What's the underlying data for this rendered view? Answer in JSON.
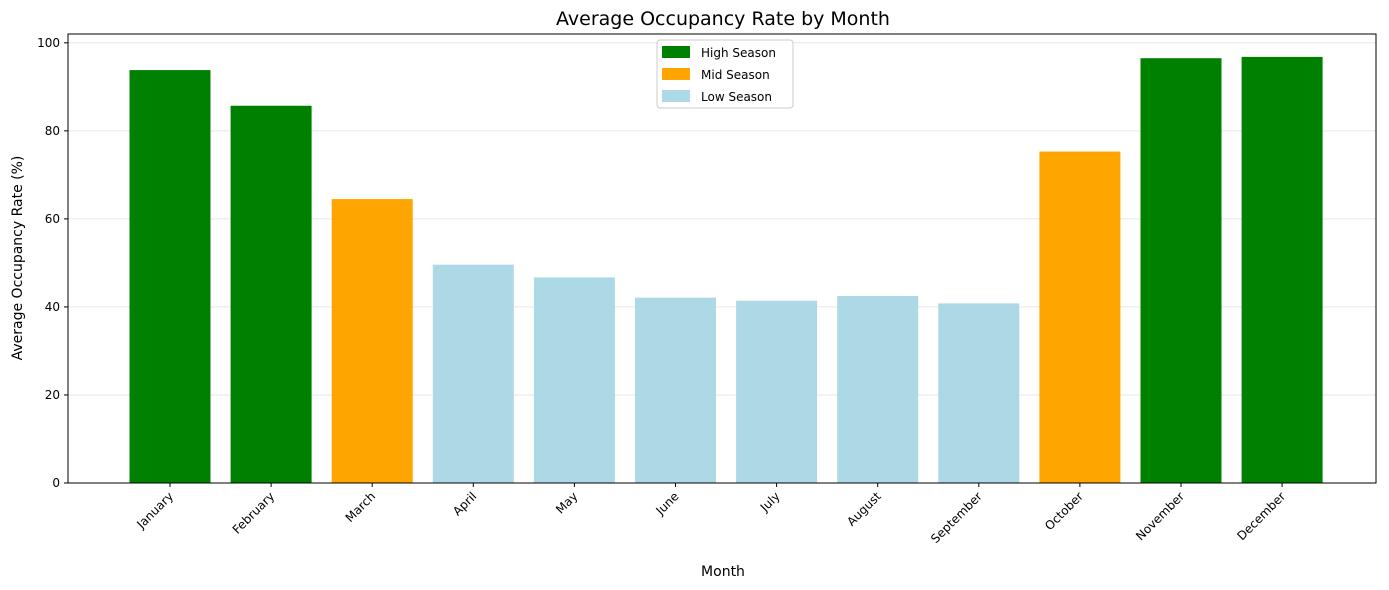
{
  "chart_data": {
    "type": "bar",
    "title": "Average Occupancy Rate by Month",
    "xlabel": "Month",
    "ylabel": "Average Occupancy Rate (%)",
    "ylim": [
      0,
      102
    ],
    "yticks": [
      0,
      20,
      40,
      60,
      80,
      100
    ],
    "grid": "y",
    "legend_position": "top-center",
    "categories": [
      "January",
      "February",
      "March",
      "April",
      "May",
      "June",
      "July",
      "August",
      "September",
      "October",
      "November",
      "December"
    ],
    "values": [
      93.8,
      85.7,
      64.5,
      49.6,
      46.7,
      42.1,
      41.4,
      42.5,
      40.8,
      75.3,
      96.5,
      96.8
    ],
    "season": [
      "High Season",
      "High Season",
      "Mid Season",
      "Low Season",
      "Low Season",
      "Low Season",
      "Low Season",
      "Low Season",
      "Low Season",
      "Mid Season",
      "High Season",
      "High Season"
    ],
    "legend": [
      {
        "label": "High Season",
        "color": "#008000"
      },
      {
        "label": "Mid Season",
        "color": "#ffa500"
      },
      {
        "label": "Low Season",
        "color": "#add8e6"
      }
    ]
  }
}
